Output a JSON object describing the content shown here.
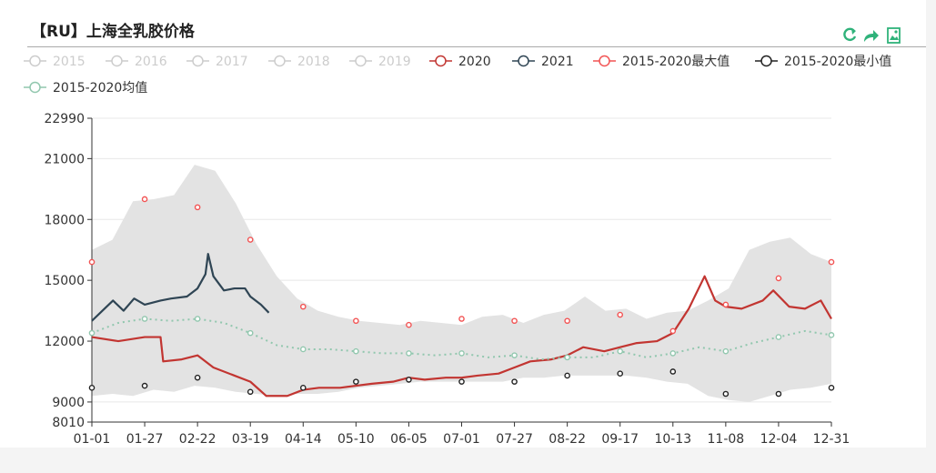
{
  "header": {
    "title": "【RU】上海全乳胶价格"
  },
  "toolbox": {
    "icons": [
      "refresh-icon",
      "share-icon",
      "save-image-icon"
    ],
    "color": "#2fb27a"
  },
  "chart_data": {
    "type": "line",
    "title": "",
    "categories": [
      "01-01",
      "01-27",
      "02-22",
      "03-19",
      "04-14",
      "05-10",
      "06-05",
      "07-01",
      "07-27",
      "08-22",
      "09-17",
      "10-13",
      "11-08",
      "12-04",
      "12-31"
    ],
    "yticks": [
      22990,
      21000,
      18000,
      15000,
      12000,
      9000,
      8010
    ],
    "ylim": [
      8010,
      22990
    ],
    "legend": {
      "position": "top",
      "items": [
        {
          "name": "2015",
          "active": false,
          "color": "#cccccc"
        },
        {
          "name": "2016",
          "active": false,
          "color": "#cccccc"
        },
        {
          "name": "2017",
          "active": false,
          "color": "#cccccc"
        },
        {
          "name": "2018",
          "active": false,
          "color": "#cccccc"
        },
        {
          "name": "2019",
          "active": false,
          "color": "#cccccc"
        },
        {
          "name": "2020",
          "active": true,
          "color": "#c23531"
        },
        {
          "name": "2021",
          "active": true,
          "color": "#2f4554"
        },
        {
          "name": "2015-2020最大值",
          "active": true,
          "color": "#f25454"
        },
        {
          "name": "2015-2020最小值",
          "active": true,
          "color": "#222222"
        },
        {
          "name": "2015-2020均值",
          "active": true,
          "color": "#91c7ae"
        }
      ]
    },
    "band": {
      "upper": [
        16500,
        17000,
        18900,
        19000,
        19200,
        20700,
        20400,
        18800,
        16800,
        15200,
        14100,
        13500,
        13200,
        13000,
        12900,
        12800,
        13000,
        12900,
        12800,
        13200,
        13300,
        12900,
        13300,
        13500,
        14200,
        13500,
        13600,
        13100,
        13400,
        13500,
        14000,
        14600,
        16500,
        16900,
        17100,
        16300,
        15900
      ],
      "lower": [
        9300,
        9400,
        9300,
        9600,
        9500,
        9800,
        9700,
        9500,
        9400,
        9300,
        9400,
        9400,
        9500,
        9700,
        9800,
        9900,
        10000,
        10000,
        10000,
        10000,
        10000,
        10200,
        10200,
        10300,
        10300,
        10300,
        10300,
        10200,
        10000,
        9900,
        9300,
        9100,
        9000,
        9300,
        9600,
        9700,
        9900
      ]
    },
    "series": [
      {
        "name": "2020",
        "color": "#c23531",
        "points": [
          [
            0,
            12200
          ],
          [
            0.5,
            12000
          ],
          [
            1,
            12200
          ],
          [
            1.3,
            12200
          ],
          [
            1.35,
            11000
          ],
          [
            1.7,
            11100
          ],
          [
            2,
            11300
          ],
          [
            2.3,
            10700
          ],
          [
            2.7,
            10300
          ],
          [
            3,
            10000
          ],
          [
            3.3,
            9300
          ],
          [
            3.7,
            9300
          ],
          [
            4,
            9600
          ],
          [
            4.3,
            9700
          ],
          [
            4.7,
            9700
          ],
          [
            5,
            9800
          ],
          [
            5.3,
            9900
          ],
          [
            5.7,
            10000
          ],
          [
            6,
            10200
          ],
          [
            6.3,
            10100
          ],
          [
            6.7,
            10200
          ],
          [
            7,
            10200
          ],
          [
            7.3,
            10300
          ],
          [
            7.7,
            10400
          ],
          [
            8,
            10700
          ],
          [
            8.3,
            11000
          ],
          [
            8.7,
            11100
          ],
          [
            9,
            11300
          ],
          [
            9.3,
            11700
          ],
          [
            9.7,
            11500
          ],
          [
            10,
            11700
          ],
          [
            10.3,
            11900
          ],
          [
            10.7,
            12000
          ],
          [
            11,
            12400
          ],
          [
            11.3,
            13600
          ],
          [
            11.6,
            15200
          ],
          [
            11.8,
            14000
          ],
          [
            12,
            13700
          ],
          [
            12.3,
            13600
          ],
          [
            12.7,
            14000
          ],
          [
            12.9,
            14500
          ],
          [
            13.2,
            13700
          ],
          [
            13.5,
            13600
          ],
          [
            13.8,
            14000
          ],
          [
            14,
            13100
          ]
        ]
      },
      {
        "name": "2021",
        "color": "#2f4554",
        "points": [
          [
            0,
            13000
          ],
          [
            0.2,
            13500
          ],
          [
            0.4,
            14000
          ],
          [
            0.6,
            13500
          ],
          [
            0.8,
            14100
          ],
          [
            1,
            13800
          ],
          [
            1.3,
            14000
          ],
          [
            1.5,
            14100
          ],
          [
            1.8,
            14200
          ],
          [
            2,
            14600
          ],
          [
            2.15,
            15300
          ],
          [
            2.2,
            16300
          ],
          [
            2.3,
            15200
          ],
          [
            2.5,
            14500
          ],
          [
            2.7,
            14600
          ],
          [
            2.9,
            14600
          ],
          [
            3,
            14200
          ],
          [
            3.2,
            13800
          ],
          [
            3.35,
            13400
          ]
        ]
      },
      {
        "name": "2015-2020最大值",
        "color": "#f25454",
        "points": [
          [
            0,
            15900
          ],
          [
            1,
            19000
          ],
          [
            2,
            18600
          ],
          [
            3,
            17000
          ],
          [
            4,
            13700
          ],
          [
            5,
            13000
          ],
          [
            6,
            12800
          ],
          [
            7,
            13100
          ],
          [
            8,
            13000
          ],
          [
            9,
            13000
          ],
          [
            10,
            13300
          ],
          [
            11,
            12500
          ],
          [
            12,
            13800
          ],
          [
            13,
            15100
          ],
          [
            14,
            15900
          ]
        ]
      },
      {
        "name": "2015-2020最小值",
        "color": "#222222",
        "points": [
          [
            0,
            9700
          ],
          [
            1,
            9800
          ],
          [
            2,
            10200
          ],
          [
            3,
            9500
          ],
          [
            4,
            9700
          ],
          [
            5,
            10000
          ],
          [
            6,
            10100
          ],
          [
            7,
            10000
          ],
          [
            8,
            10000
          ],
          [
            9,
            10300
          ],
          [
            10,
            10400
          ],
          [
            11,
            10500
          ],
          [
            12,
            9400
          ],
          [
            13,
            9400
          ],
          [
            14,
            9700
          ]
        ]
      },
      {
        "name": "2015-2020均值",
        "color": "#91c7ae",
        "points": [
          [
            0,
            12400
          ],
          [
            0.5,
            12900
          ],
          [
            1,
            13100
          ],
          [
            1.5,
            13000
          ],
          [
            2,
            13100
          ],
          [
            2.5,
            12900
          ],
          [
            3,
            12400
          ],
          [
            3.5,
            11800
          ],
          [
            4,
            11600
          ],
          [
            4.5,
            11600
          ],
          [
            5,
            11500
          ],
          [
            5.5,
            11400
          ],
          [
            6,
            11400
          ],
          [
            6.5,
            11300
          ],
          [
            7,
            11400
          ],
          [
            7.5,
            11200
          ],
          [
            8,
            11300
          ],
          [
            8.5,
            11100
          ],
          [
            9,
            11200
          ],
          [
            9.5,
            11200
          ],
          [
            10,
            11500
          ],
          [
            10.5,
            11200
          ],
          [
            11,
            11400
          ],
          [
            11.5,
            11700
          ],
          [
            12,
            11500
          ],
          [
            12.5,
            11900
          ],
          [
            13,
            12200
          ],
          [
            13.5,
            12500
          ],
          [
            14,
            12300
          ]
        ]
      }
    ]
  }
}
